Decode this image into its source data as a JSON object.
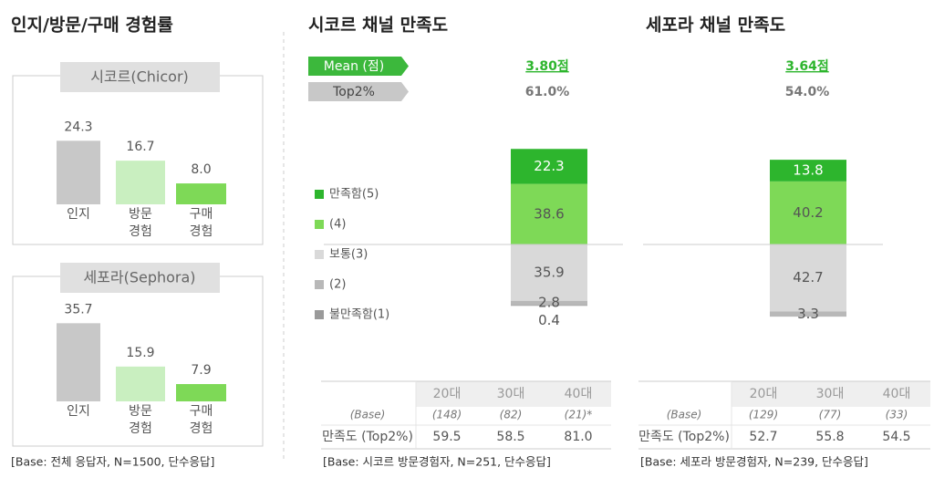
{
  "awareness": {
    "title": "인지/방문/구매 경험률",
    "panels": [
      {
        "type": "bar",
        "name": "시코르(Chicor)",
        "categories": [
          [
            "인지"
          ],
          [
            "방문",
            "경험"
          ],
          [
            "구매",
            "경험"
          ]
        ],
        "values": [
          24.3,
          16.7,
          8.0
        ],
        "value_labels": [
          "24.3",
          "16.7",
          "8.0"
        ],
        "colors": [
          "#c8c8c8",
          "#c9efc0",
          "#7ed957"
        ],
        "ylim": [
          0,
          30
        ]
      },
      {
        "type": "bar",
        "name": "세포라(Sephora)",
        "categories": [
          [
            "인지"
          ],
          [
            "방문",
            "경험"
          ],
          [
            "구매",
            "경험"
          ]
        ],
        "values": [
          35.7,
          15.9,
          7.9
        ],
        "value_labels": [
          "35.7",
          "15.9",
          "7.9"
        ],
        "colors": [
          "#c8c8c8",
          "#c9efc0",
          "#7ed957"
        ],
        "ylim": [
          0,
          40
        ]
      }
    ],
    "footnote": "[Base: 전체 응답자, N=1500, 단수응답]"
  },
  "satisfaction": {
    "metric_labels": [
      "Mean (점)",
      "Top2%"
    ],
    "legend": [
      {
        "name": "만족함(5)",
        "color": "#2db52d"
      },
      {
        "name": "(4)",
        "color": "#7ed957"
      },
      {
        "name": "보통(3)",
        "color": "#d9d9d9"
      },
      {
        "name": "(2)",
        "color": "#b8b8b8"
      },
      {
        "name": "불만족함(1)",
        "color": "#9a9a9a"
      }
    ],
    "channels": [
      {
        "type": "stacked_bar",
        "title": "시코르 채널 만족도",
        "mean": "3.80점",
        "top2": "61.0%",
        "values": [
          22.3,
          38.6,
          35.9,
          2.8,
          0.4
        ],
        "value_labels": [
          "22.3",
          "38.6",
          "35.9",
          "2.8",
          "0.4"
        ],
        "table": {
          "header": [
            "20대",
            "30대",
            "40대"
          ],
          "rows": [
            [
              "(Base)",
              "(148)",
              "(82)",
              "(21)*"
            ],
            [
              "만족도 (Top2%)",
              "59.5",
              "58.5",
              "81.0"
            ]
          ]
        },
        "footnote": "[Base: 시코르 방문경험자, N=251, 단수응답]"
      },
      {
        "type": "stacked_bar",
        "title": "세포라 채널 만족도",
        "mean": "3.64점",
        "top2": "54.0%",
        "values": [
          13.8,
          40.2,
          42.7,
          3.3,
          null
        ],
        "value_labels": [
          "13.8",
          "40.2",
          "42.7",
          "3.3",
          null
        ],
        "table": {
          "header": [
            "20대",
            "30대",
            "40대"
          ],
          "rows": [
            [
              "(Base)",
              "(129)",
              "(77)",
              "(33)"
            ],
            [
              "만족도 (Top2%)",
              "52.7",
              "55.8",
              "54.5"
            ]
          ]
        },
        "footnote": "[Base: 세포라 방문경험자, N=239, 단수응답]"
      }
    ]
  }
}
